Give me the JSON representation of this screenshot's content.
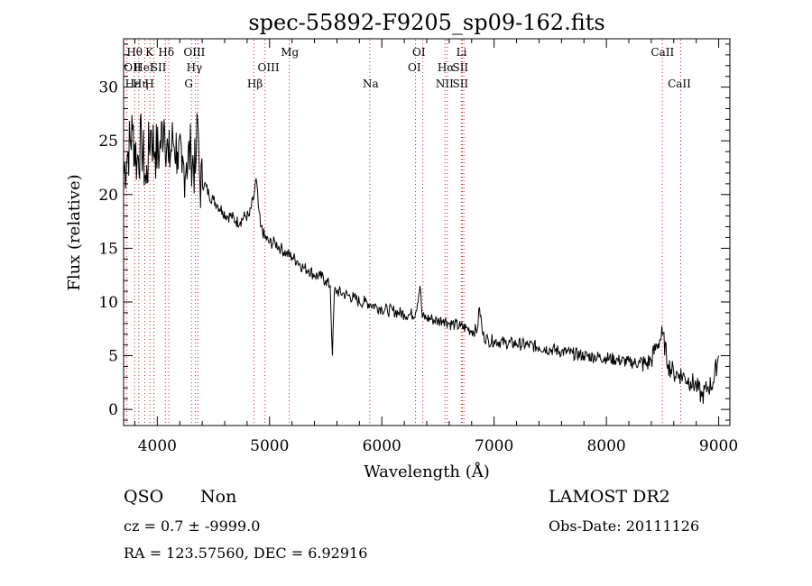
{
  "chart_data": {
    "type": "line",
    "title": "spec-55892-F9205_sp09-162.fits",
    "xlabel": "Wavelength (Å)",
    "ylabel": "Flux (relative)",
    "xlim": [
      3700,
      9100
    ],
    "ylim": [
      -1.5,
      34.5
    ],
    "x_ticks": [
      4000,
      5000,
      6000,
      7000,
      8000,
      9000
    ],
    "y_ticks": [
      0,
      5,
      10,
      15,
      20,
      25,
      30
    ],
    "grid": false,
    "series": [
      {
        "x": [
          3700,
          3740,
          3780,
          3820,
          3860,
          3900,
          3940,
          3980,
          4020,
          4060,
          4100,
          4140,
          4180,
          4220,
          4260,
          4300,
          4340,
          4360,
          4380,
          4420,
          4460,
          4500,
          4540,
          4580,
          4620,
          4660,
          4700,
          4740,
          4780,
          4820,
          4860,
          4880,
          4900,
          4920,
          4960,
          5000,
          5050,
          5100,
          5150,
          5200,
          5250,
          5300,
          5350,
          5400,
          5450,
          5500,
          5540,
          5560,
          5577,
          5600,
          5650,
          5700,
          5750,
          5800,
          5850,
          5900,
          5950,
          6000,
          6050,
          6100,
          6150,
          6200,
          6250,
          6300,
          6340,
          6360,
          6400,
          6450,
          6500,
          6550,
          6600,
          6650,
          6700,
          6750,
          6800,
          6850,
          6870,
          6900,
          6950,
          7000,
          7100,
          7200,
          7300,
          7400,
          7500,
          7600,
          7700,
          7800,
          7900,
          8000,
          8100,
          8200,
          8300,
          8350,
          8400,
          8450,
          8500,
          8550,
          8600,
          8650,
          8700,
          8750,
          8800,
          8850,
          8900,
          8950,
          9000
        ],
        "y": [
          22,
          24,
          26,
          23,
          25,
          21,
          26,
          24,
          24,
          27,
          23,
          25,
          24,
          22,
          23,
          24,
          22,
          27,
          21,
          21,
          20,
          19.5,
          19,
          18.5,
          18,
          18,
          17.5,
          17.5,
          18,
          18,
          19.8,
          21.5,
          19,
          17,
          16,
          15.5,
          15.5,
          15,
          14.5,
          14.2,
          13.8,
          13.2,
          13,
          12.5,
          12.4,
          12,
          11.5,
          5,
          11,
          11,
          10.8,
          10.6,
          10.4,
          10,
          10,
          9.8,
          9.6,
          9.4,
          9.2,
          9.2,
          9,
          8.9,
          8.8,
          9,
          11.5,
          8.6,
          8.5,
          8.4,
          8.2,
          8.4,
          8,
          7.9,
          7.7,
          7.6,
          7.3,
          7.4,
          9.5,
          6.9,
          6.4,
          6.4,
          6.2,
          6.1,
          6,
          5.8,
          5.6,
          5.4,
          5.2,
          5,
          4.9,
          4.8,
          4.6,
          4.4,
          4.3,
          4.2,
          4.6,
          6,
          7,
          4.2,
          3.4,
          3.3,
          3.0,
          2.6,
          2.2,
          1.2,
          2,
          2.5,
          5
        ]
      }
    ],
    "lines": [
      {
        "label": "Hθ",
        "x": 3798,
        "row": 1,
        "col_x": 3798
      },
      {
        "label": "K",
        "x": 3934,
        "row": 1,
        "col_x": 3930
      },
      {
        "label": "Hδ",
        "x": 4102,
        "row": 1,
        "col_x": 4080
      },
      {
        "label": "OIII",
        "x": 4363,
        "row": 1,
        "col_x": 4330
      },
      {
        "label": "Mg",
        "x": 5175,
        "row": 1,
        "col_x": 5180
      },
      {
        "label": "OI",
        "x": 6300,
        "row": 1,
        "col_x": 6330
      },
      {
        "label": "Li",
        "x": 6708,
        "row": 1,
        "col_x": 6710
      },
      {
        "label": "CaII",
        "x": 8498,
        "row": 1,
        "col_x": 8500
      },
      {
        "label": "OII",
        "x": 3727,
        "row": 2,
        "col_x": 3780
      },
      {
        "label": "HeI",
        "x": 3889,
        "row": 2,
        "col_x": 3880
      },
      {
        "label": "SII",
        "x": 4072,
        "row": 2,
        "col_x": 4010
      },
      {
        "label": "Hγ",
        "x": 4340,
        "row": 2,
        "col_x": 4330
      },
      {
        "label": "OIII",
        "x": 4959,
        "row": 2,
        "col_x": 4990
      },
      {
        "label": "OI",
        "x": 6364,
        "row": 2,
        "col_x": 6290
      },
      {
        "label": "Hα",
        "x": 6563,
        "row": 2,
        "col_x": 6570
      },
      {
        "label": "SII",
        "x": 6717,
        "row": 2,
        "col_x": 6700
      },
      {
        "label": "Hε",
        "x": 3970,
        "row": 3,
        "col_x": 3780
      },
      {
        "label": "Hη",
        "x": 3835,
        "row": 3,
        "col_x": 3850
      },
      {
        "label": "H",
        "x": 3969,
        "row": 3,
        "col_x": 3930
      },
      {
        "label": "G",
        "x": 4304,
        "row": 3,
        "col_x": 4280
      },
      {
        "label": "Hβ",
        "x": 4861,
        "row": 3,
        "col_x": 4870
      },
      {
        "label": "Na",
        "x": 5893,
        "row": 3,
        "col_x": 5900
      },
      {
        "label": "NII",
        "x": 6583,
        "row": 3,
        "col_x": 6560
      },
      {
        "label": "SII",
        "x": 6731,
        "row": 3,
        "col_x": 6700
      },
      {
        "label": "CaII",
        "x": 8662,
        "row": 3,
        "col_x": 8650
      }
    ]
  },
  "info": {
    "class": "QSO",
    "subclass": "Non",
    "survey": "LAMOST DR2",
    "cz": "cz = 0.7 ± -9999.0",
    "obs_date": "Obs-Date: 20111126",
    "radec": "RA = 123.57560, DEC =    6.92916"
  },
  "colors": {
    "line": "#000000",
    "marker": "#cc2222",
    "background": "#ffffff"
  }
}
